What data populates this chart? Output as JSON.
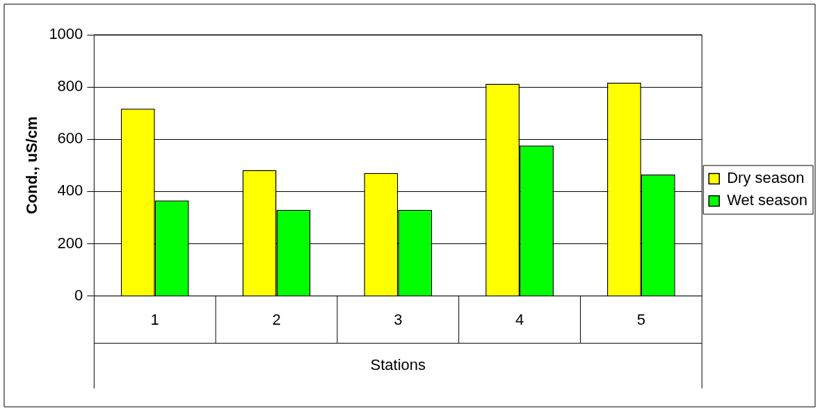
{
  "chart_data": {
    "type": "bar",
    "xlabel": "Stations",
    "ylabel": "Cond., uS/cm",
    "categories": [
      "1",
      "2",
      "3",
      "4",
      "5"
    ],
    "series": [
      {
        "name": "Dry season",
        "color": "#ffff00",
        "values": [
          717,
          482,
          471,
          812,
          816
        ]
      },
      {
        "name": "Wet season",
        "color": "#00ff00",
        "values": [
          366,
          330,
          330,
          576,
          465
        ]
      }
    ],
    "ylim": [
      0,
      1000
    ],
    "yticks": [
      0,
      200,
      400,
      600,
      800,
      1000
    ],
    "grid": "y",
    "legend": "right"
  }
}
